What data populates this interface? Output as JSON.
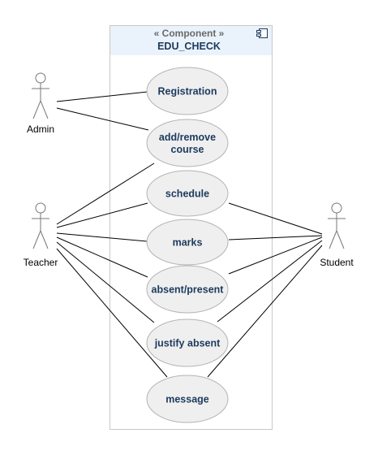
{
  "component": {
    "stereotype": "« Component »",
    "name": "EDU_CHECK",
    "icon": "component-icon"
  },
  "actors": [
    {
      "id": "admin",
      "label": "Admin"
    },
    {
      "id": "teacher",
      "label": "Teacher"
    },
    {
      "id": "student",
      "label": "Student"
    }
  ],
  "use_cases": [
    {
      "id": "registration",
      "lines": [
        "Registration"
      ]
    },
    {
      "id": "add-remove-course",
      "lines": [
        "add/remove",
        "course"
      ]
    },
    {
      "id": "schedule",
      "lines": [
        "schedule"
      ]
    },
    {
      "id": "marks",
      "lines": [
        "marks"
      ]
    },
    {
      "id": "absent-present",
      "lines": [
        "absent/present"
      ]
    },
    {
      "id": "justify-absent",
      "lines": [
        "justify absent"
      ]
    },
    {
      "id": "message",
      "lines": [
        "message"
      ]
    }
  ],
  "associations": [
    [
      "admin",
      "registration"
    ],
    [
      "admin",
      "add-remove-course"
    ],
    [
      "teacher",
      "add-remove-course"
    ],
    [
      "teacher",
      "schedule"
    ],
    [
      "teacher",
      "marks"
    ],
    [
      "teacher",
      "absent-present"
    ],
    [
      "teacher",
      "justify-absent"
    ],
    [
      "teacher",
      "message"
    ],
    [
      "student",
      "schedule"
    ],
    [
      "student",
      "marks"
    ],
    [
      "student",
      "absent-present"
    ],
    [
      "student",
      "justify-absent"
    ],
    [
      "student",
      "message"
    ]
  ],
  "colors": {
    "usecase_fill": "#efefef",
    "usecase_stroke": "#b3b3b3",
    "header_fill": "#eaf2fb",
    "boundary_stroke": "#c8c8c8",
    "text": "#1c3a5e",
    "line": "#000000"
  }
}
